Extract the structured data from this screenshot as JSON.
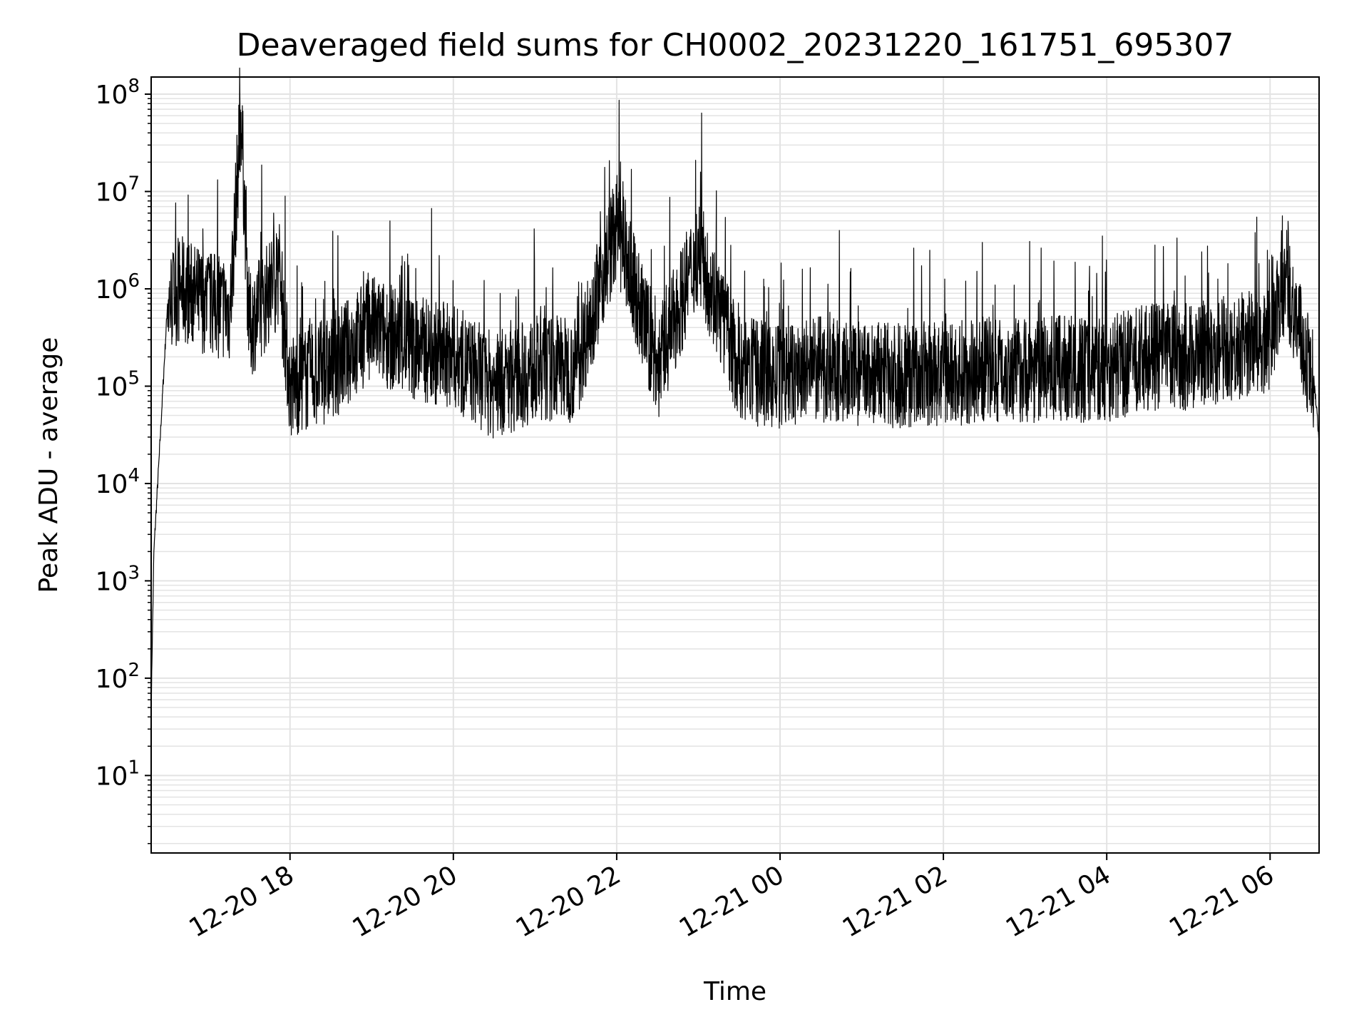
{
  "chart_data": {
    "type": "line",
    "title": "Deaveraged field sums for CH0002_20231220_161751_695307",
    "xlabel": "Time",
    "ylabel": "Peak ADU - average",
    "yscale": "log",
    "ylim": [
      1.6,
      150000000
    ],
    "xlim": [
      "2023-12-20 16:18",
      "2023-12-21 06:36"
    ],
    "grid": true,
    "line_color": "#000000",
    "grid_color": "#e3e3e3",
    "x_ticks": [
      {
        "time": "2023-12-20 18:00",
        "label": "12-20 18"
      },
      {
        "time": "2023-12-20 20:00",
        "label": "12-20 20"
      },
      {
        "time": "2023-12-20 22:00",
        "label": "12-20 22"
      },
      {
        "time": "2023-12-21 00:00",
        "label": "12-21 00"
      },
      {
        "time": "2023-12-21 02:00",
        "label": "12-21 02"
      },
      {
        "time": "2023-12-21 04:00",
        "label": "12-21 04"
      },
      {
        "time": "2023-12-21 06:00",
        "label": "12-21 06"
      }
    ],
    "y_ticks": [
      {
        "value": 10,
        "base": "10",
        "exp": "1"
      },
      {
        "value": 100,
        "base": "10",
        "exp": "2"
      },
      {
        "value": 1000,
        "base": "10",
        "exp": "3"
      },
      {
        "value": 10000,
        "base": "10",
        "exp": "4"
      },
      {
        "value": 100000,
        "base": "10",
        "exp": "5"
      },
      {
        "value": 1000000,
        "base": "10",
        "exp": "6"
      },
      {
        "value": 10000000,
        "base": "10",
        "exp": "7"
      },
      {
        "value": 100000000,
        "base": "10",
        "exp": "8"
      }
    ],
    "series": [
      {
        "x": [
          "2023-12-20 16:18",
          "2023-12-20 16:20",
          "2023-12-20 16:24",
          "2023-12-20 16:30",
          "2023-12-20 16:40",
          "2023-12-20 16:52",
          "2023-12-20 17:04",
          "2023-12-20 17:16",
          "2023-12-20 17:24",
          "2023-12-20 17:30",
          "2023-12-20 17:40",
          "2023-12-20 17:52",
          "2023-12-20 18:00",
          "2023-12-20 18:30",
          "2023-12-20 19:00",
          "2023-12-20 19:30",
          "2023-12-20 20:00",
          "2023-12-20 20:30",
          "2023-12-20 21:00",
          "2023-12-20 21:30",
          "2023-12-20 22:00",
          "2023-12-20 22:30",
          "2023-12-20 23:00",
          "2023-12-20 23:30",
          "2023-12-21 00:00",
          "2023-12-21 00:30",
          "2023-12-21 01:00",
          "2023-12-21 01:30",
          "2023-12-21 02:00",
          "2023-12-21 02:30",
          "2023-12-21 03:00",
          "2023-12-21 03:30",
          "2023-12-21 04:00",
          "2023-12-21 04:30",
          "2023-12-21 05:00",
          "2023-12-21 05:30",
          "2023-12-21 06:00",
          "2023-12-21 06:12",
          "2023-12-21 06:24",
          "2023-12-21 06:32",
          "2023-12-21 06:36"
        ],
        "y": [
          50,
          2000,
          20000,
          700000,
          1000000,
          800000,
          700000,
          600000,
          65000000,
          400000,
          700000,
          1500000,
          100000,
          150000,
          400000,
          250000,
          200000,
          100000,
          150000,
          150000,
          4400000,
          150000,
          2500000,
          150000,
          120000,
          150000,
          130000,
          130000,
          130000,
          150000,
          150000,
          150000,
          150000,
          200000,
          200000,
          250000,
          300000,
          1300000,
          250000,
          120000,
          30000
        ]
      }
    ]
  }
}
